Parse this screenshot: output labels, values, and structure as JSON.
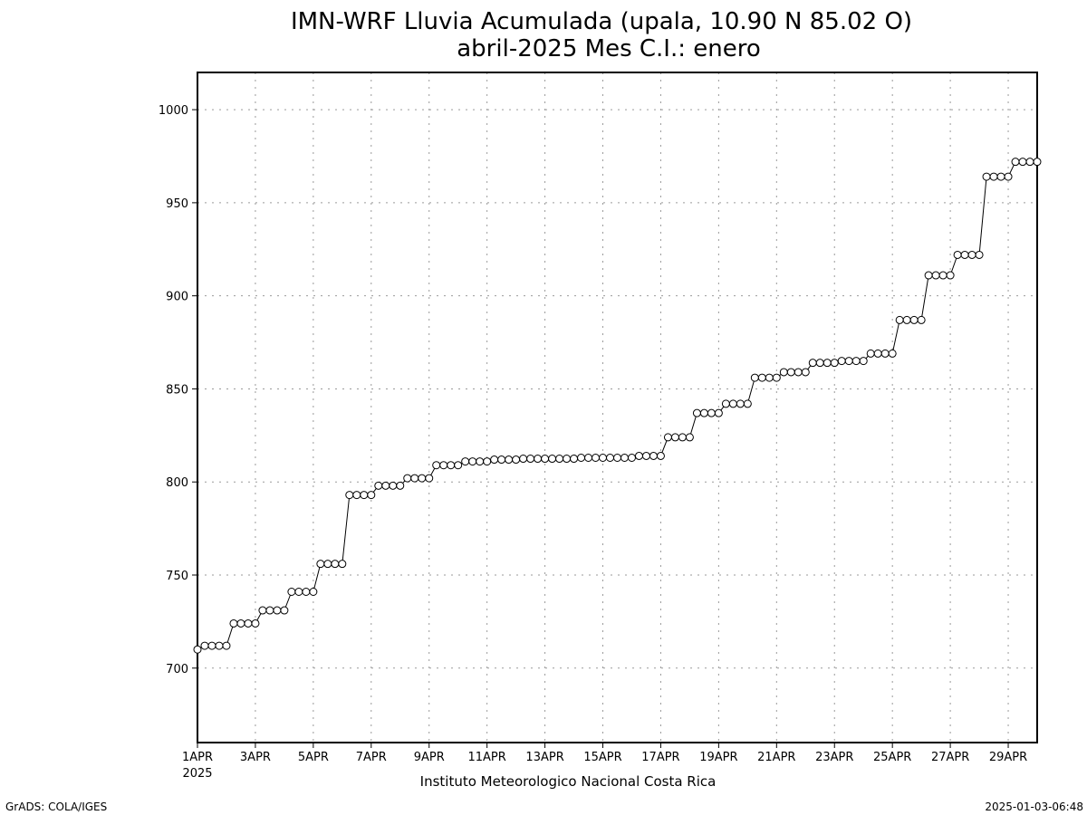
{
  "chart_data": {
    "type": "line",
    "title": "IMN-WRF  Lluvia Acumulada  (upala, 10.90  N 85.02  O)",
    "subtitle": "abril-2025 Mes C.I.: enero",
    "xlabel": "Instituto Meteorologico Nacional Costa Rica",
    "ylabel": "",
    "xlim": [
      1,
      30
    ],
    "ylim": [
      660,
      1020
    ],
    "grid": true,
    "marker": "open-circle",
    "x_tick_labels": [
      "1APR",
      "3APR",
      "5APR",
      "7APR",
      "9APR",
      "11APR",
      "13APR",
      "15APR",
      "17APR",
      "19APR",
      "21APR",
      "23APR",
      "25APR",
      "27APR",
      "29APR"
    ],
    "x_tick_values": [
      1,
      3,
      5,
      7,
      9,
      11,
      13,
      15,
      17,
      19,
      21,
      23,
      25,
      27,
      29
    ],
    "x_year_label": "2025",
    "y_ticks": [
      700,
      750,
      800,
      850,
      900,
      950,
      1000
    ],
    "x_step": 0.25,
    "values": [
      710,
      712,
      712,
      712,
      712,
      724,
      724,
      724,
      724,
      731,
      731,
      731,
      731,
      741,
      741,
      741,
      741,
      756,
      756,
      756,
      756,
      793,
      793,
      793,
      793,
      798,
      798,
      798,
      798,
      802,
      802,
      802,
      802,
      809,
      809,
      809,
      809,
      811,
      811,
      811,
      811,
      812,
      812,
      812,
      812,
      812.5,
      812.5,
      812.5,
      812.5,
      812.5,
      812.5,
      812.5,
      812.5,
      813,
      813,
      813,
      813,
      813,
      813,
      813,
      813,
      814,
      814,
      814,
      814,
      824,
      824,
      824,
      824,
      837,
      837,
      837,
      837,
      842,
      842,
      842,
      842,
      856,
      856,
      856,
      856,
      859,
      859,
      859,
      859,
      864,
      864,
      864,
      864,
      865,
      865,
      865,
      865,
      869,
      869,
      869,
      869,
      887,
      887,
      887,
      887,
      911,
      911,
      911,
      911,
      922,
      922,
      922,
      922,
      964,
      964,
      964,
      964,
      972,
      972,
      972,
      972
    ]
  },
  "footer": {
    "left": "GrADS: COLA/IGES",
    "right": "2025-01-03-06:48"
  }
}
